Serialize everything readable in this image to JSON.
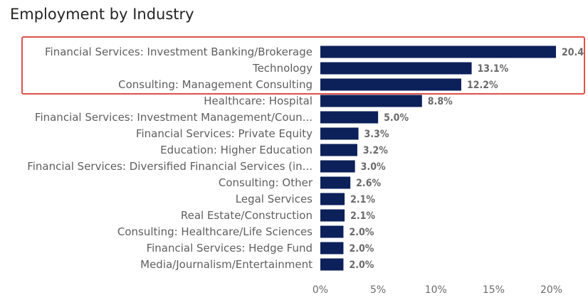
{
  "chart_data": {
    "type": "bar",
    "orientation": "horizontal",
    "title": "Employment by Industry",
    "categories": [
      "Financial Services: Investment Banking/Brokerage",
      "Technology",
      "Consulting: Management Consulting",
      "Healthcare: Hospital",
      "Financial Services: Investment Management/Coun...",
      "Financial Services: Private Equity",
      "Education: Higher Education",
      "Financial Services: Diversified Financial Services (in...",
      "Consulting: Other",
      "Legal Services",
      "Real Estate/Construction",
      "Consulting: Healthcare/Life Sciences",
      "Financial Services: Hedge Fund",
      "Media/Journalism/Entertainment"
    ],
    "values": [
      20.4,
      13.1,
      12.2,
      8.8,
      5.0,
      3.3,
      3.2,
      3.0,
      2.6,
      2.1,
      2.1,
      2.0,
      2.0,
      2.0
    ],
    "value_labels": [
      "20.4",
      "13.1%",
      "12.2%",
      "8.8%",
      "5.0%",
      "3.3%",
      "3.2%",
      "3.0%",
      "2.6%",
      "2.1%",
      "2.1%",
      "2.0%",
      "2.0%",
      "2.0%"
    ],
    "xticks": [
      "0%",
      "5%",
      "10%",
      "15%",
      "20%"
    ],
    "xlim": [
      0,
      20.4
    ],
    "xlabel": "",
    "ylabel": "",
    "bar_color": "#0c2059",
    "highlight_color": "#e0514a",
    "highlighted_categories": [
      0,
      1,
      2
    ],
    "grid": false,
    "legend": "none"
  }
}
